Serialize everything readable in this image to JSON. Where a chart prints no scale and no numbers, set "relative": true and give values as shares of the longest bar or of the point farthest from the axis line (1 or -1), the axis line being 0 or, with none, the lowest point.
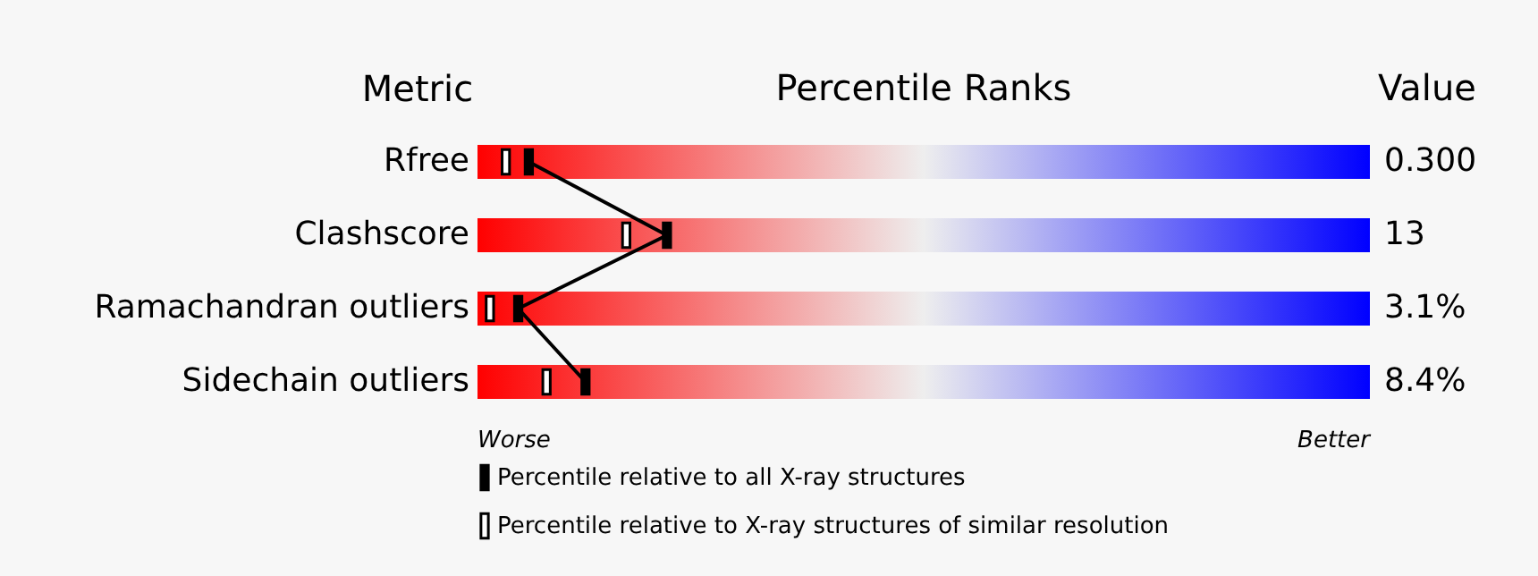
{
  "chart_data": {
    "type": "scatter",
    "orientation": "horizontal",
    "relative": true,
    "title": "Percentile Ranks",
    "ylabel": "Metric",
    "categories": [
      "Rfree",
      "Clashscore",
      "Ramachandran outliers",
      "Sidechain outliers"
    ],
    "series": [
      {
        "name": "Percentile relative to all X-ray structures",
        "type": "line",
        "color": "#000000",
        "values": [
          0.22,
          1,
          0.16,
          0.54
        ]
      },
      {
        "name": "Percentile relative to X-ray structures of similar resolution",
        "type": "scatter",
        "color": "#000000",
        "values": [
          0.09,
          0.77,
          0,
          0.32
        ]
      }
    ],
    "annotations": [
      "Value",
      "0.300",
      "13",
      "3.1%",
      "8.4%",
      "Worse",
      "Better"
    ],
    "marker": "square",
    "legend": "bottom",
    "line_style": "solid"
  }
}
